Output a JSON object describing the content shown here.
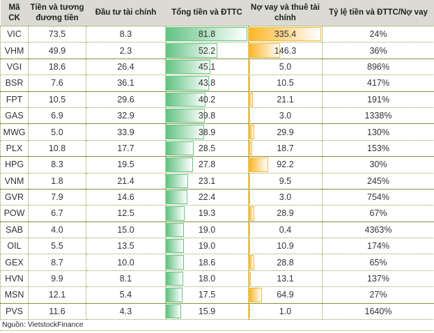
{
  "chart_data": {
    "type": "table",
    "title": "",
    "columns": [
      {
        "id": "ticker",
        "label": "Mã CK"
      },
      {
        "id": "cash",
        "label": "Tiền và tương đương tiền"
      },
      {
        "id": "investment",
        "label": "Đầu tư tài chính"
      },
      {
        "id": "total",
        "label": "Tổng tiền và ĐTTC"
      },
      {
        "id": "debt",
        "label": "Nợ vay và thuê tài chính"
      },
      {
        "id": "ratio",
        "label": "Tỷ lệ tiền và ĐTTC/Nợ vay"
      }
    ],
    "bars": {
      "total": {
        "max": 81.8,
        "color": "#63C384",
        "fade": "#FFFFFF"
      },
      "debt": {
        "max": 335.4,
        "color": "#FFB628",
        "fade": "#FFFFFF"
      }
    },
    "rows": [
      {
        "ticker": "VIC",
        "cash": 73.5,
        "investment": 8.3,
        "total": 81.8,
        "debt": 335.4,
        "ratio": 24,
        "sep": "dotted"
      },
      {
        "ticker": "VHM",
        "cash": 49.9,
        "investment": 2.3,
        "total": 52.2,
        "debt": 146.3,
        "ratio": 36,
        "sep": "solid"
      },
      {
        "ticker": "VGI",
        "cash": 18.6,
        "investment": 26.4,
        "total": 45.1,
        "debt": 5.0,
        "ratio": 896,
        "sep": "dotted"
      },
      {
        "ticker": "BSR",
        "cash": 7.6,
        "investment": 36.1,
        "total": 43.8,
        "debt": 10.5,
        "ratio": 417,
        "sep": "solid"
      },
      {
        "ticker": "FPT",
        "cash": 10.5,
        "investment": 29.6,
        "total": 40.2,
        "debt": 21.1,
        "ratio": 191,
        "sep": "dotted"
      },
      {
        "ticker": "GAS",
        "cash": 6.9,
        "investment": 32.9,
        "total": 39.8,
        "debt": 3.0,
        "ratio": 1338,
        "sep": "solid"
      },
      {
        "ticker": "MWG",
        "cash": 5.0,
        "investment": 33.9,
        "total": 38.9,
        "debt": 29.9,
        "ratio": 130,
        "sep": "dotted"
      },
      {
        "ticker": "PLX",
        "cash": 10.8,
        "investment": 17.7,
        "total": 28.5,
        "debt": 18.7,
        "ratio": 153,
        "sep": "solid"
      },
      {
        "ticker": "HPG",
        "cash": 8.3,
        "investment": 19.5,
        "total": 27.8,
        "debt": 92.2,
        "ratio": 30,
        "sep": "dotted"
      },
      {
        "ticker": "VNM",
        "cash": 1.8,
        "investment": 21.4,
        "total": 23.1,
        "debt": 9.5,
        "ratio": 245,
        "sep": "solid"
      },
      {
        "ticker": "GVR",
        "cash": 7.9,
        "investment": 14.6,
        "total": 22.4,
        "debt": 3.0,
        "ratio": 754,
        "sep": "dotted"
      },
      {
        "ticker": "POW",
        "cash": 6.7,
        "investment": 12.5,
        "total": 19.3,
        "debt": 28.9,
        "ratio": 67,
        "sep": "solid"
      },
      {
        "ticker": "SAB",
        "cash": 4.0,
        "investment": 15.0,
        "total": 19.0,
        "debt": 0.4,
        "ratio": 4363,
        "sep": "dotted"
      },
      {
        "ticker": "OIL",
        "cash": 5.5,
        "investment": 13.5,
        "total": 19.0,
        "debt": 10.9,
        "ratio": 174,
        "sep": "dotted"
      },
      {
        "ticker": "GEX",
        "cash": 8.7,
        "investment": 10.0,
        "total": 18.6,
        "debt": 28.8,
        "ratio": 65,
        "sep": "dotted"
      },
      {
        "ticker": "HVN",
        "cash": 9.9,
        "investment": 8.1,
        "total": 18.0,
        "debt": 13.1,
        "ratio": 137,
        "sep": "dotted"
      },
      {
        "ticker": "MSN",
        "cash": 12.1,
        "investment": 5.4,
        "total": 17.5,
        "debt": 64.9,
        "ratio": 27,
        "sep": "solid"
      },
      {
        "ticker": "PVS",
        "cash": 11.6,
        "investment": 4.3,
        "total": 15.9,
        "debt": 1.0,
        "ratio": 1640,
        "sep": "dotted"
      }
    ],
    "layout": {
      "grid": "dotted-olive",
      "bar_style": "gradient-left-to-white"
    }
  },
  "footer": {
    "source": "Nguồn: VietstockFinance"
  },
  "style": {
    "header_bg": "#DBDBD3",
    "grid_color": "#85A03D",
    "bar_green": "#63C384",
    "bar_orange": "#FFB628",
    "text_color": "#333333"
  }
}
